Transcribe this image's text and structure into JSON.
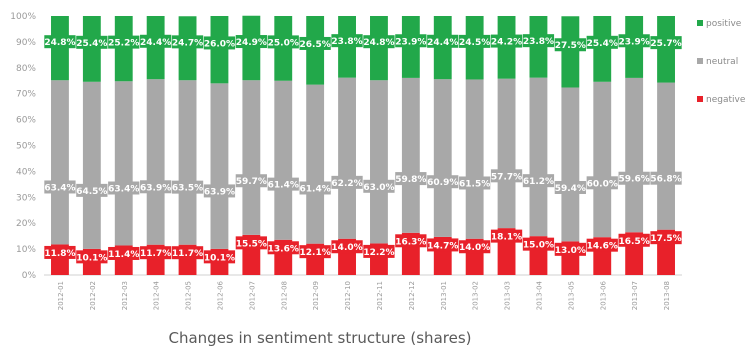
{
  "chart_data": {
    "type": "bar",
    "stacked": true,
    "percent": true,
    "title": "Changes in sentiment structure (shares)",
    "categories": [
      "2012-01",
      "2012-02",
      "2012-03",
      "2012-04",
      "2012-05",
      "2012-06",
      "2012-07",
      "2012-08",
      "2012-09",
      "2012-10",
      "2012-11",
      "2012-12",
      "2013-01",
      "2013-02",
      "2013-03",
      "2013-04",
      "2013-05",
      "2013-06",
      "2013-07",
      "2013-08"
    ],
    "series": [
      {
        "name": "negative",
        "color": "#e8212a",
        "values": [
          11.8,
          10.1,
          11.4,
          11.7,
          11.7,
          10.1,
          15.5,
          13.6,
          12.1,
          14.0,
          12.2,
          16.3,
          14.7,
          14.0,
          18.1,
          15.0,
          13.0,
          14.6,
          16.5,
          17.5
        ],
        "labels": [
          "11.8%",
          "10.1%",
          "11.4%",
          "11.7%",
          "11.7%",
          "10.1%",
          "15.5%",
          "13.6%",
          "12.1%",
          "14.0%",
          "12.2%",
          "16.3%",
          "14.7%",
          "14.0%",
          "18.1%",
          "15.0%",
          "13.0%",
          "14.6%",
          "16.5%",
          "17.5%"
        ]
      },
      {
        "name": "neutral",
        "color": "#a8a8a8",
        "values": [
          63.4,
          64.5,
          63.4,
          63.9,
          63.5,
          63.9,
          59.7,
          61.4,
          61.4,
          62.2,
          63.0,
          59.8,
          60.9,
          61.5,
          57.7,
          61.2,
          59.4,
          60.0,
          59.6,
          56.8
        ],
        "labels": [
          "63.4%",
          "64.5%",
          "63.4%",
          "63.9%",
          "63.5%",
          "63.9%",
          "59.7%",
          "61.4%",
          "61.4%",
          "62.2%",
          "63.0%",
          "59.8%",
          "60.9%",
          "61.5%",
          "57.7%",
          "61.2%",
          "59.4%",
          "60.0%",
          "59.6%",
          "56.8%"
        ]
      },
      {
        "name": "positive",
        "color": "#22a84a",
        "values": [
          24.8,
          25.4,
          25.2,
          24.4,
          24.7,
          26.0,
          24.9,
          25.0,
          26.5,
          23.8,
          24.8,
          23.9,
          24.4,
          24.5,
          24.2,
          23.8,
          27.5,
          25.4,
          23.9,
          25.7
        ],
        "labels": [
          "24.8%",
          "25.4%",
          "25.2%",
          "24.4%",
          "24.7%",
          "26.0%",
          "24.9%",
          "25.0%",
          "26.5%",
          "23.8%",
          "24.8%",
          "23.9%",
          "24.4%",
          "24.5%",
          "24.2%",
          "23.8%",
          "27.5%",
          "25.4%",
          "23.9%",
          "25.7%"
        ]
      }
    ],
    "y_ticks": [
      "0%",
      "10%",
      "20%",
      "30%",
      "40%",
      "50%",
      "60%",
      "70%",
      "80%",
      "90%",
      "100%"
    ],
    "ylim": [
      0,
      100
    ],
    "legend": {
      "placement": "right",
      "order": [
        "positive",
        "neutral",
        "negative"
      ]
    },
    "grid": false
  }
}
